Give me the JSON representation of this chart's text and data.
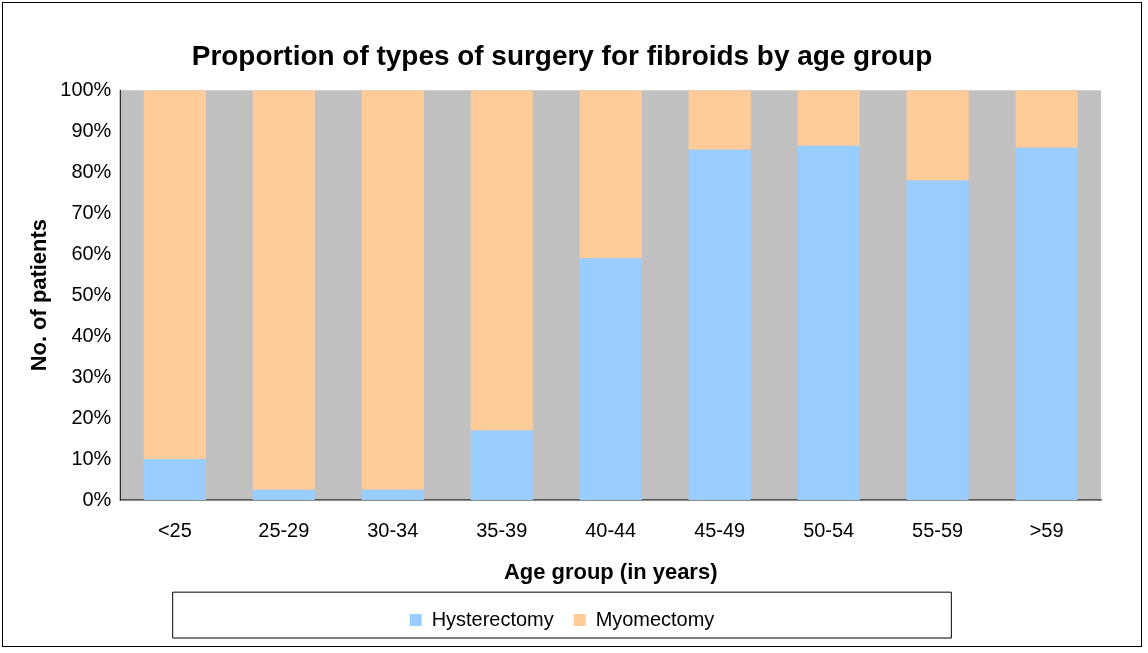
{
  "chart_data": {
    "type": "bar",
    "stacked": true,
    "title": "Proportion of types of surgery for fibroids by age group",
    "xlabel": "Age group (in years)",
    "ylabel": "No. of patients",
    "categories": [
      "<25",
      "25-29",
      "30-34",
      "35-39",
      "40-44",
      "45-49",
      "50-54",
      "55-59",
      ">59"
    ],
    "series": [
      {
        "name": "Hysterectomy",
        "color": "#99ccff",
        "values": [
          10,
          2.5,
          2.5,
          17,
          59,
          85.5,
          86.5,
          78,
          86
        ]
      },
      {
        "name": "Myomectomy",
        "color": "#ffcc99",
        "values": [
          90,
          97.5,
          97.5,
          83,
          41,
          14.5,
          13.5,
          22,
          14
        ]
      }
    ],
    "ylim": [
      0,
      100
    ],
    "yticks": [
      {
        "value": 0,
        "label": "0%"
      },
      {
        "value": 10,
        "label": "10%"
      },
      {
        "value": 20,
        "label": "20%"
      },
      {
        "value": 30,
        "label": "30%"
      },
      {
        "value": 40,
        "label": "40%"
      },
      {
        "value": 50,
        "label": "50%"
      },
      {
        "value": 60,
        "label": "60%"
      },
      {
        "value": 70,
        "label": "70%"
      },
      {
        "value": 80,
        "label": "80%"
      },
      {
        "value": 90,
        "label": "90%"
      },
      {
        "value": 100,
        "label": "100%"
      }
    ],
    "legend": "bottom"
  }
}
